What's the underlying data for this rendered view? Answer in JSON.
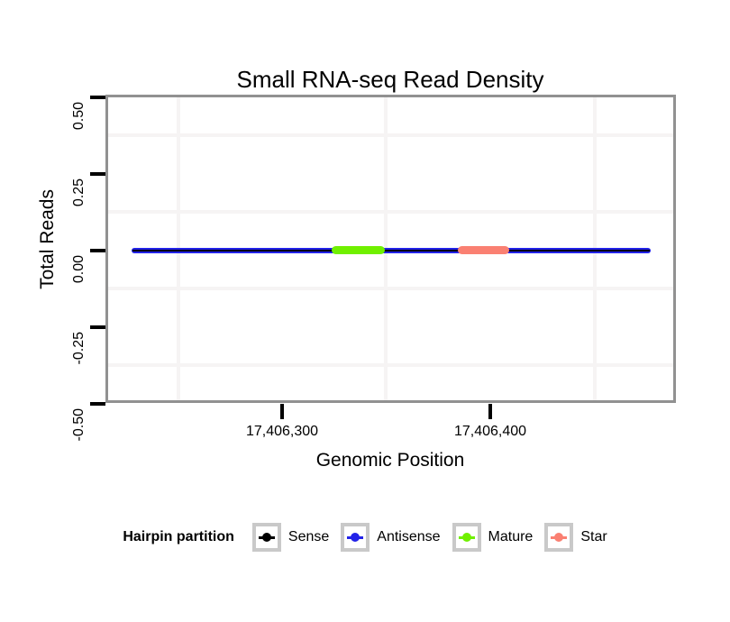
{
  "title": "Small RNA-seq Read Density",
  "x_axis": {
    "label": "Genomic Position",
    "tick_labels": [
      "17,406,300",
      "17,406,400"
    ]
  },
  "y_axis": {
    "label": "Total Reads",
    "tick_labels": [
      "0.50",
      "0.25",
      "0.00",
      "-0.25",
      "-0.50"
    ]
  },
  "legend": {
    "title": "Hairpin partition",
    "items": [
      {
        "label": "Sense",
        "color": "#000000"
      },
      {
        "label": "Antisense",
        "color": "#2222e8"
      },
      {
        "label": "Mature",
        "color": "#70f000"
      },
      {
        "label": "Star",
        "color": "#fa8072"
      }
    ]
  },
  "colors": {
    "panel_border": "#919191",
    "grid": "#f6f4f4",
    "tick": "#000000",
    "legend_key_border": "#c9c9c9",
    "sense_line": "#000000",
    "antisense_line": "#2222e8",
    "mature_segment": "#70f000",
    "star_segment": "#fa8072"
  },
  "chart_data": {
    "type": "line",
    "title": "Small RNA-seq Read Density",
    "xlabel": "Genomic Position",
    "ylabel": "Total Reads",
    "xlim": [
      17406215,
      17406490
    ],
    "ylim": [
      -0.5,
      0.5
    ],
    "x_ticks": [
      17406300,
      17406400
    ],
    "y_ticks": [
      -0.5,
      -0.25,
      0.0,
      0.25,
      0.5
    ],
    "grid": {
      "on": true,
      "vertical_x": [
        17406250,
        17406350,
        17406450
      ],
      "horizontal_y": [
        0.375,
        0.125,
        -0.125,
        -0.375
      ]
    },
    "legend_position": "bottom",
    "series": [
      {
        "name": "Sense",
        "color": "#000000",
        "start": 17406228,
        "end": 17406477,
        "y": 0,
        "line_style": "thin"
      },
      {
        "name": "Antisense",
        "color": "#2222e8",
        "start": 17406228,
        "end": 17406477,
        "y": 0,
        "line_style": "thin"
      },
      {
        "name": "Mature",
        "color": "#70f000",
        "start": 17406324,
        "end": 17406349,
        "y": 0,
        "line_style": "thick-rounded"
      },
      {
        "name": "Star",
        "color": "#fa8072",
        "start": 17406384,
        "end": 17406409,
        "y": 0,
        "line_style": "thick-rounded"
      }
    ],
    "note": "Flat coverage: total reads = 0 across the whole hairpin region"
  }
}
